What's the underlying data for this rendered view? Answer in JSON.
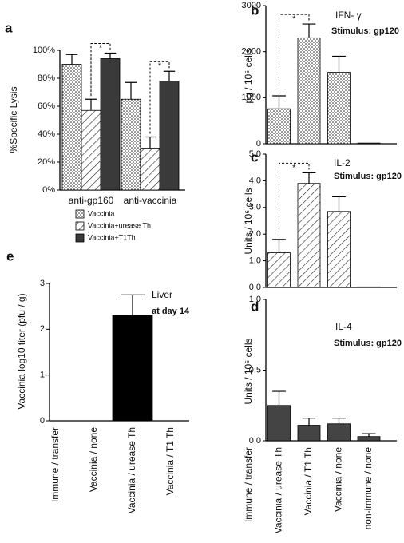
{
  "chart_data": [
    {
      "panel": "a",
      "type": "bar",
      "ylabel": "%Specific Lysis",
      "categories": [
        "anti-gp160",
        "anti-vaccinia"
      ],
      "series": [
        {
          "name": "Vaccinia",
          "pattern": "dots",
          "color": "#ffffff",
          "values": [
            90,
            65
          ],
          "errors": [
            7,
            12
          ]
        },
        {
          "name": "Vaccinia+urease Th",
          "pattern": "hatch",
          "color": "#ffffff",
          "values": [
            57,
            30
          ],
          "errors": [
            8,
            8
          ]
        },
        {
          "name": "Vaccinia+T1Th",
          "pattern": "solid",
          "color": "#3a3a3a",
          "values": [
            94,
            78
          ],
          "errors": [
            4,
            7
          ]
        }
      ],
      "ylim": [
        0,
        100
      ],
      "yticks": [
        {
          "value": 0,
          "label": "0%"
        },
        {
          "value": 20,
          "label": "20%"
        },
        {
          "value": 40,
          "label": "40%"
        },
        {
          "value": 60,
          "label": "60%"
        },
        {
          "value": 80,
          "label": "80%"
        },
        {
          "value": 100,
          "label": "100%"
        }
      ],
      "brackets": [
        {
          "label": "*",
          "category": 0,
          "series": [
            1,
            2
          ]
        },
        {
          "label": "*",
          "category": 1,
          "series": [
            1,
            2
          ]
        }
      ]
    },
    {
      "panel": "b",
      "type": "bar",
      "title": "IFN- γ",
      "subtitle": "Stimulus: gp120",
      "ylabel": "pg / 10⁶ cells",
      "pattern": "dots",
      "color": "#ffffff",
      "values": [
        null,
        760,
        2300,
        1550,
        15
      ],
      "errors": [
        null,
        280,
        300,
        350,
        0
      ],
      "ylim": [
        0,
        3000
      ],
      "yticks": [
        0,
        1000,
        2000,
        3000
      ],
      "brackets": [
        {
          "label": "*",
          "between": [
            1,
            2
          ]
        }
      ]
    },
    {
      "panel": "c",
      "type": "bar",
      "title": "IL-2",
      "subtitle": "Stimulus: gp120",
      "ylabel": "Units / 10⁶ cells",
      "pattern": "hatch",
      "color": "#ffffff",
      "values": [
        null,
        1.3,
        3.9,
        2.85,
        0.02
      ],
      "errors": [
        null,
        0.5,
        0.4,
        0.55,
        0
      ],
      "ylim": [
        0,
        5
      ],
      "yticks": [
        {
          "value": 0,
          "label": "0.0"
        },
        {
          "value": 1,
          "label": "1.0"
        },
        {
          "value": 2,
          "label": "2.0"
        },
        {
          "value": 3,
          "label": "3.0"
        },
        {
          "value": 4,
          "label": "4.0"
        },
        {
          "value": 5,
          "label": "5.0"
        }
      ],
      "brackets": [
        {
          "label": "*",
          "between": [
            1,
            2
          ]
        }
      ]
    },
    {
      "panel": "d",
      "type": "bar",
      "title": "IL-4",
      "subtitle": "Stimulus: gp120",
      "ylabel": "Units / 10⁶ cells",
      "pattern": "solid",
      "color": "#444444",
      "categories": [
        "Immune / transfer",
        "Vaccinia / urease Th",
        "Vaccinia / T1 Th",
        "Vaccinia / none",
        "non-immune / none"
      ],
      "values": [
        null,
        0.25,
        0.11,
        0.12,
        0.03
      ],
      "errors": [
        null,
        0.1,
        0.05,
        0.04,
        0.02
      ],
      "ylim": [
        0,
        1
      ],
      "yticks": [
        {
          "value": 0,
          "label": "0.0"
        },
        {
          "value": 0.5,
          "label": "0.5"
        },
        {
          "value": 1,
          "label": "1.0"
        }
      ]
    },
    {
      "panel": "e",
      "type": "bar",
      "title": "Liver",
      "subtitle": "at day 14",
      "ylabel": "Vaccinia log10 titer (pfu / g)",
      "pattern": "solid",
      "color": "#000000",
      "categories": [
        "Immune / transfer",
        "Vaccinia / none",
        "Vaccinia / urease Th",
        "Vaccinia / T1 Th"
      ],
      "values": [
        null,
        null,
        2.3,
        null
      ],
      "errors": [
        null,
        null,
        0.45,
        null
      ],
      "ylim": [
        0,
        3
      ],
      "yticks": [
        0,
        1,
        2,
        3
      ]
    }
  ]
}
